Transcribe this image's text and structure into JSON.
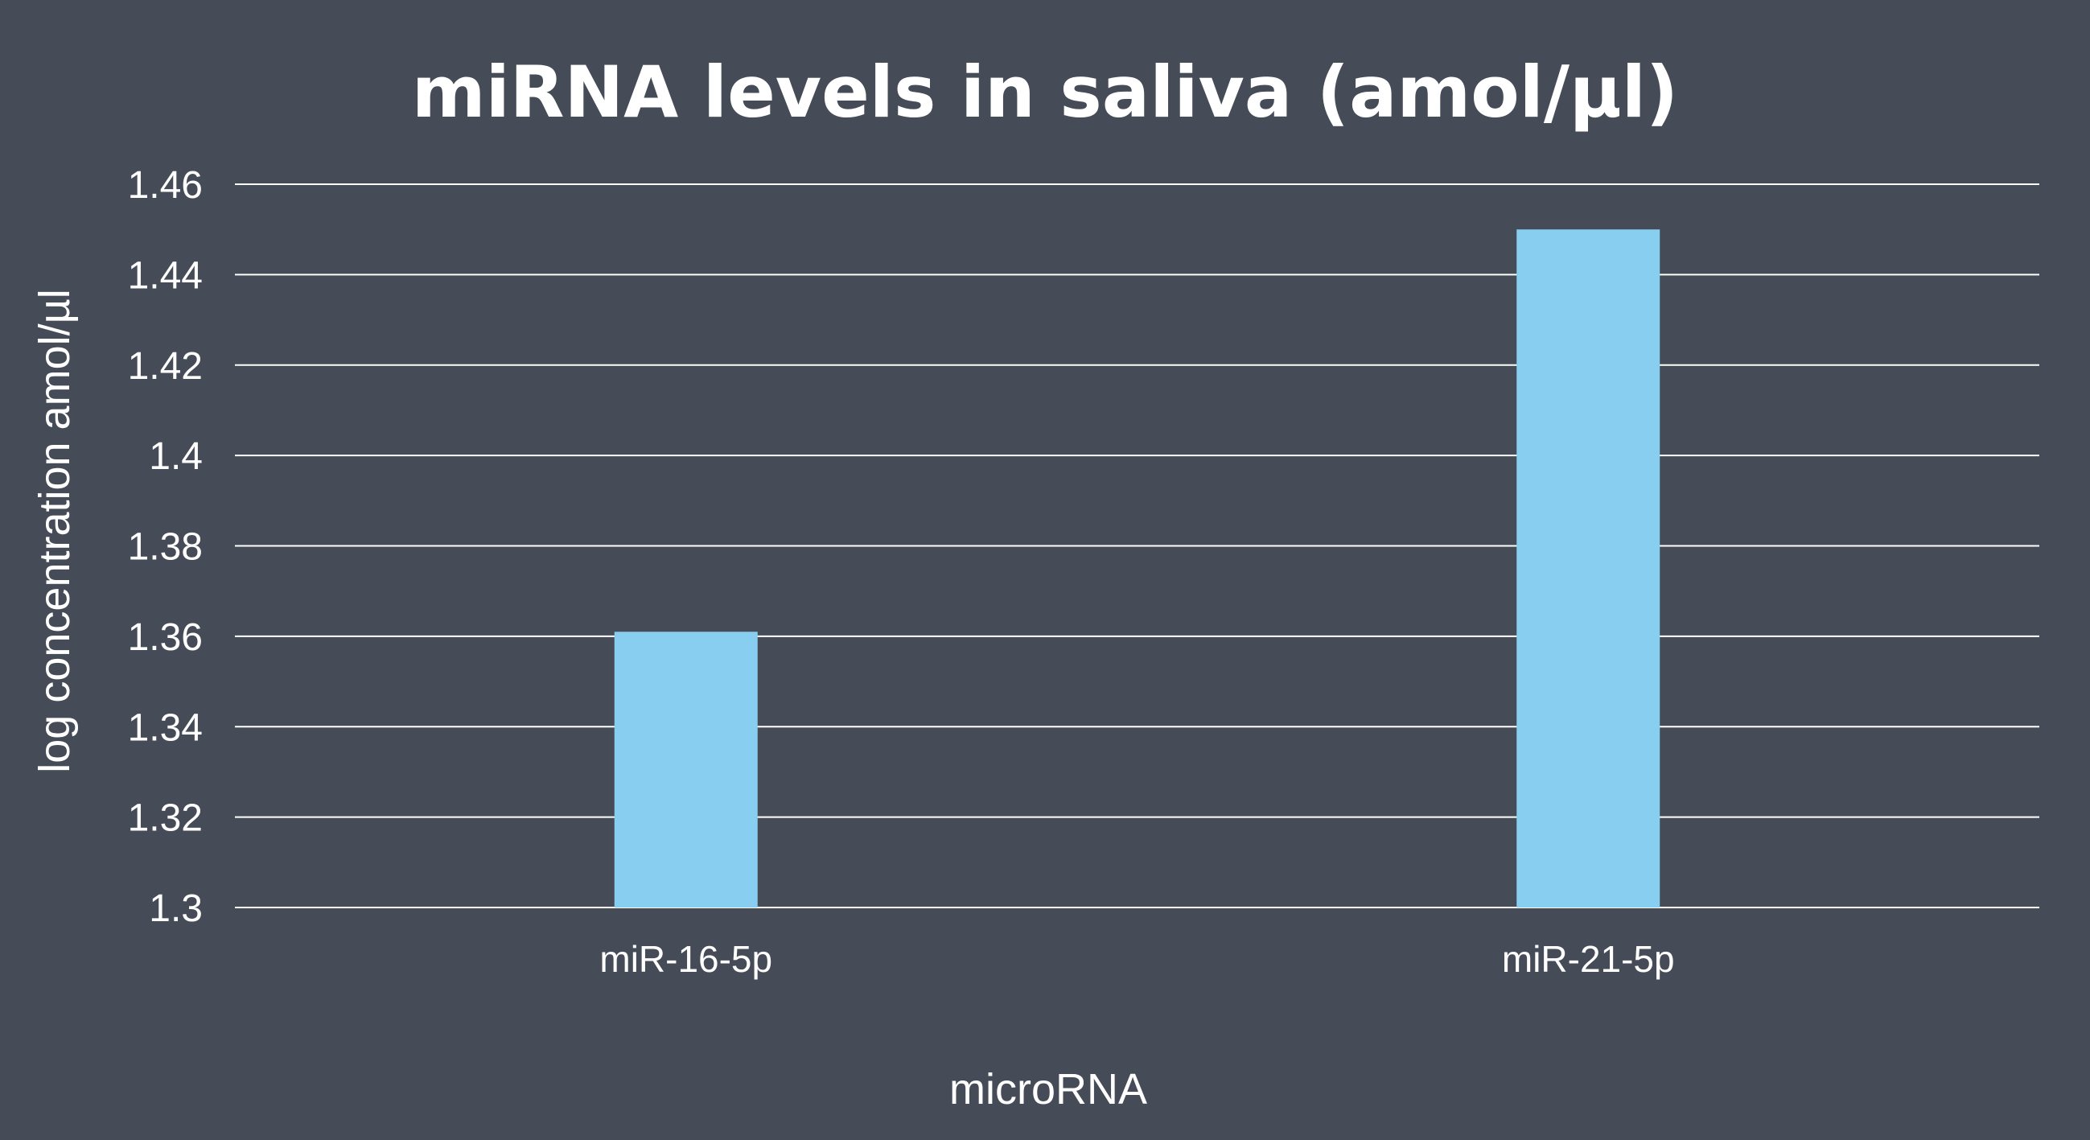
{
  "chart_data": {
    "type": "bar",
    "title": "miRNA levels in saliva (amol/µl)",
    "xlabel": "microRNA",
    "ylabel": "log concentration amol/µl",
    "categories": [
      "miR-16-5p",
      "miR-21-5p"
    ],
    "values": [
      1.361,
      1.45
    ],
    "ylim": [
      1.3,
      1.46
    ],
    "yticks": [
      "1.3",
      "1.32",
      "1.34",
      "1.36",
      "1.38",
      "1.4",
      "1.42",
      "1.44",
      "1.46"
    ],
    "grid": true,
    "legend": "none",
    "colors": {
      "background": "#454b57",
      "bar": "#87cef0",
      "grid": "#ffffff",
      "text": "#ffffff"
    }
  }
}
